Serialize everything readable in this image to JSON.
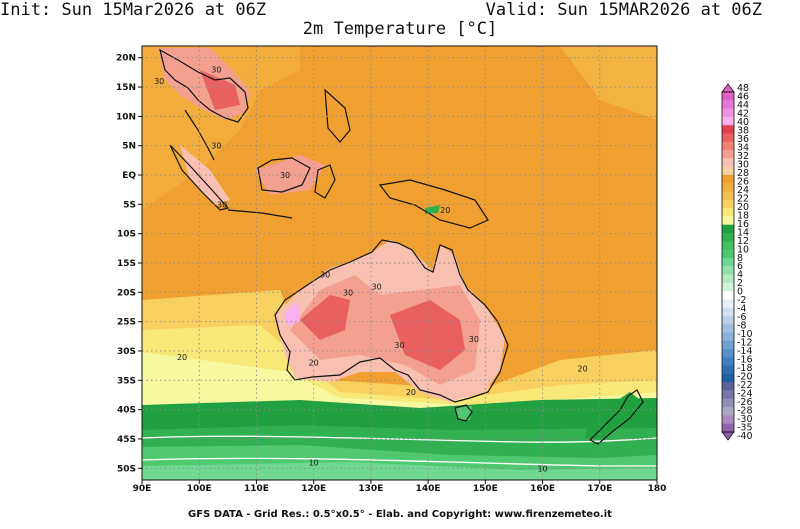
{
  "header": {
    "init": "Init: Sun 15Mar2026 at 06Z",
    "valid": "Valid: Sun 15MAR2026 at 06Z",
    "variable": "2m Temperature [°C]"
  },
  "footer": {
    "credit": "GFS DATA - Grid Res.: 0.5°x0.5° - Elab. and Copyright: www.firenzemeteo.it"
  },
  "map": {
    "lon_range": [
      90,
      180
    ],
    "lat_range": [
      -52,
      22
    ],
    "x_ticks": [
      "90E",
      "100E",
      "110E",
      "120E",
      "130E",
      "140E",
      "150E",
      "160E",
      "170E",
      "180"
    ],
    "x_tick_lons": [
      90,
      100,
      110,
      120,
      130,
      140,
      150,
      160,
      170,
      180
    ],
    "y_ticks": [
      "20N",
      "15N",
      "10N",
      "5N",
      "EQ",
      "5S",
      "10S",
      "15S",
      "20S",
      "25S",
      "30S",
      "35S",
      "40S",
      "45S",
      "50S"
    ],
    "y_tick_lats": [
      20,
      15,
      10,
      5,
      0,
      -5,
      -10,
      -15,
      -20,
      -25,
      -30,
      -35,
      -40,
      -45,
      -50
    ],
    "grid": true,
    "contour_labels": [
      {
        "text": "30",
        "lon": 93,
        "lat": 16
      },
      {
        "text": "30",
        "lon": 103,
        "lat": 18
      },
      {
        "text": "30",
        "lon": 103,
        "lat": 5
      },
      {
        "text": "30",
        "lon": 115,
        "lat": 0
      },
      {
        "text": "30",
        "lon": 104,
        "lat": -5
      },
      {
        "text": "30",
        "lon": 122,
        "lat": -17
      },
      {
        "text": "30",
        "lon": 126,
        "lat": -20
      },
      {
        "text": "30",
        "lon": 131,
        "lat": -19
      },
      {
        "text": "30",
        "lon": 135,
        "lat": -29
      },
      {
        "text": "30",
        "lon": 148,
        "lat": -28
      },
      {
        "text": "20",
        "lon": 143,
        "lat": -6
      },
      {
        "text": "20",
        "lon": 97,
        "lat": -31
      },
      {
        "text": "20",
        "lon": 120,
        "lat": -32
      },
      {
        "text": "20",
        "lon": 137,
        "lat": -37
      },
      {
        "text": "20",
        "lon": 167,
        "lat": -33
      },
      {
        "text": "10",
        "lon": 120,
        "lat": -49
      },
      {
        "text": "10",
        "lon": 160,
        "lat": -50
      }
    ]
  },
  "colorbar": {
    "labels": [
      "48",
      "46",
      "44",
      "42",
      "40",
      "38",
      "36",
      "34",
      "32",
      "30",
      "28",
      "26",
      "24",
      "22",
      "20",
      "18",
      "16",
      "14",
      "12",
      "10",
      "8",
      "6",
      "4",
      "2",
      "0",
      "-2",
      "-4",
      "-6",
      "-8",
      "-10",
      "-12",
      "-14",
      "-16",
      "-18",
      "-20",
      "-22",
      "-24",
      "-26",
      "-28",
      "-30",
      "-35",
      "-40"
    ],
    "colors": [
      "#e060c8",
      "#e878d8",
      "#f090e0",
      "#f8b0f0",
      "#e04050",
      "#e86060",
      "#f08070",
      "#f4a090",
      "#f8c0b0",
      "#f8d0a0",
      "#f0a030",
      "#f0b040",
      "#f4c050",
      "#f8d060",
      "#f8e878",
      "#f8f8a0",
      "#20a040",
      "#30b050",
      "#40c060",
      "#50c870",
      "#70d890",
      "#90e0a8",
      "#b0ecc0",
      "#d0f4d8",
      "#ffffff",
      "#e8f0f8",
      "#d0e0f0",
      "#b8d0e8",
      "#a0c0e0",
      "#88b0d8",
      "#70a0d0",
      "#5890c8",
      "#4080c0",
      "#3070b0",
      "#2060a0",
      "#606098",
      "#7878a8",
      "#9090b8",
      "#a8a8c8",
      "#b088c0",
      "#9060a8"
    ]
  }
}
